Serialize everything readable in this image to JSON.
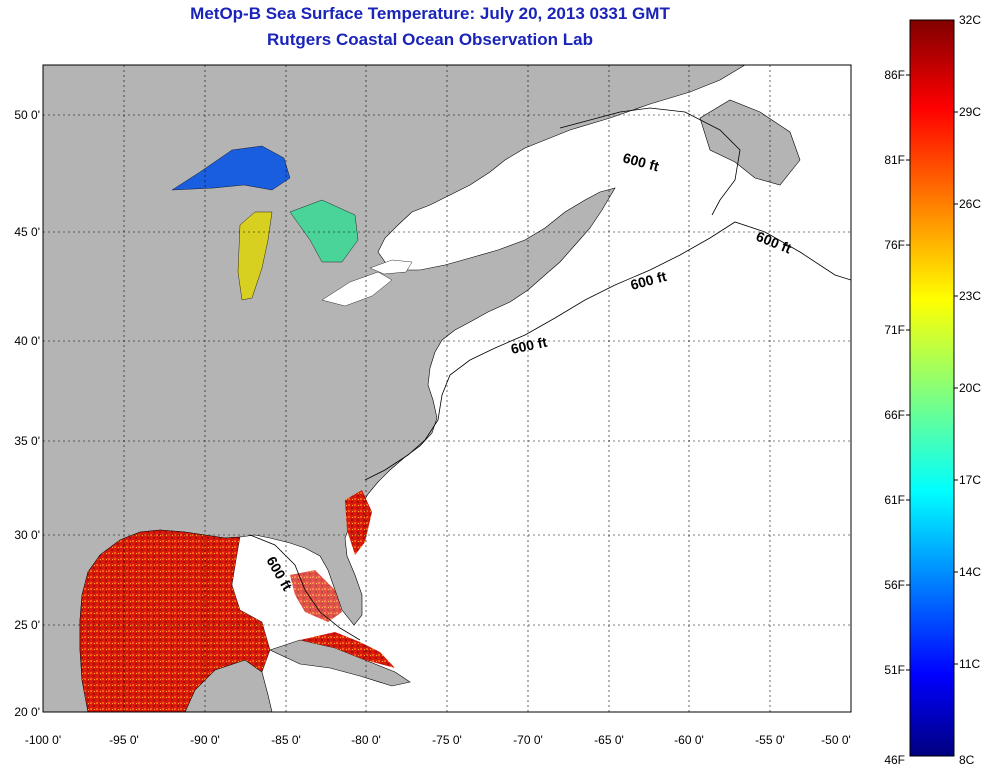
{
  "header": {
    "title": "MetOp-B Sea Surface Temperature:  July 20, 2013 0331 GMT",
    "subtitle": "Rutgers Coastal Ocean Observation Lab"
  },
  "map": {
    "lon_range": [
      -100,
      -50
    ],
    "lat_range": [
      20,
      52.5
    ],
    "lon_ticks": [
      "-100 0'",
      "-95 0'",
      "-90 0'",
      "-85 0'",
      "-80 0'",
      "-75 0'",
      "-70 0'",
      "-65 0'",
      "-60 0'",
      "-55 0'",
      "-50 0'"
    ],
    "lat_ticks": [
      "20 0'",
      "25 0'",
      "30 0'",
      "35 0'",
      "40 0'",
      "45 0'",
      "50 0'"
    ],
    "grid": "dotted",
    "land_color": "#b4b4b4",
    "no_data_color": "#ffffff",
    "contour_labels": [
      "600 ft",
      "600 ft",
      "600 ft",
      "600 ft",
      "600 ft"
    ]
  },
  "colorbar": {
    "range_c": [
      8,
      32
    ],
    "colormap": "jet",
    "celsius_labels": [
      "32C",
      "29C",
      "26C",
      "23C",
      "20C",
      "17C",
      "14C",
      "11C",
      "8C"
    ],
    "fahrenheit_labels": [
      "86F",
      "81F",
      "76F",
      "71F",
      "66F",
      "61F",
      "56F",
      "51F",
      "46F"
    ]
  }
}
